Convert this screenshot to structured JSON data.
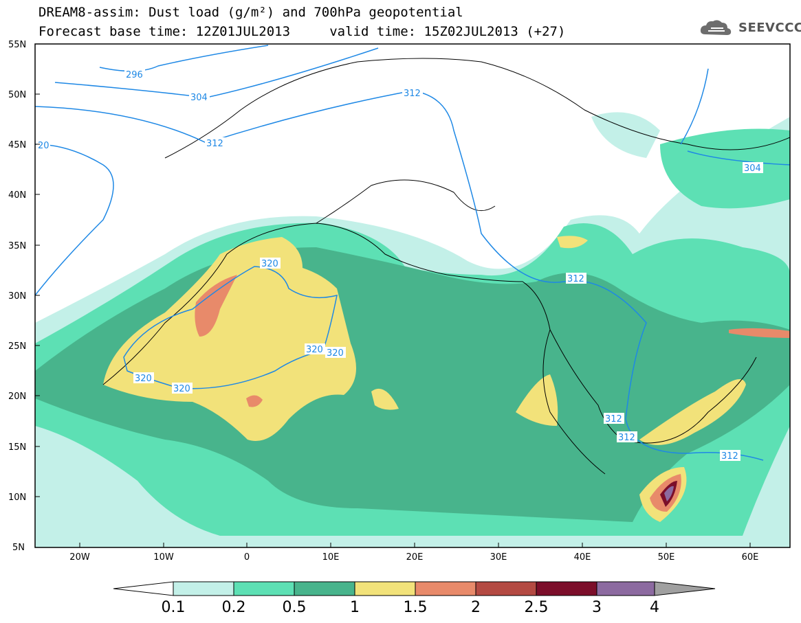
{
  "title": {
    "line1": "DREAM8-assim: Dust load (g/m²) and 700hPa geopotential",
    "line2": "Forecast base time: 12Z01JUL2013     valid time: 15Z02JUL2013 (+27)"
  },
  "logo": {
    "text": "SEEVCCC",
    "icon": "cloud-logo-icon"
  },
  "axes": {
    "lat_labels": [
      "55N",
      "50N",
      "45N",
      "40N",
      "35N",
      "30N",
      "25N",
      "20N",
      "15N",
      "10N",
      "5N"
    ],
    "lon_labels": [
      "20W",
      "10W",
      "0",
      "10E",
      "20E",
      "30E",
      "40E",
      "50E",
      "60E"
    ]
  },
  "contours": {
    "line_color": "#1e88e5",
    "labels": [
      "296",
      "304",
      "312",
      "20",
      "320",
      "320",
      "320",
      "320",
      "320",
      "312",
      "312",
      "312",
      "312",
      "312",
      "304"
    ]
  },
  "colorbar": {
    "labels": [
      "0.1",
      "0.2",
      "0.5",
      "1",
      "1.5",
      "2",
      "2.5",
      "3",
      "4"
    ],
    "colors": [
      "#c3f0e8",
      "#5de0b4",
      "#48b48c",
      "#f2e27a",
      "#e88a6a",
      "#b44a42",
      "#7c0e2a",
      "#8c6aa0",
      "#a0a0a0"
    ]
  }
}
